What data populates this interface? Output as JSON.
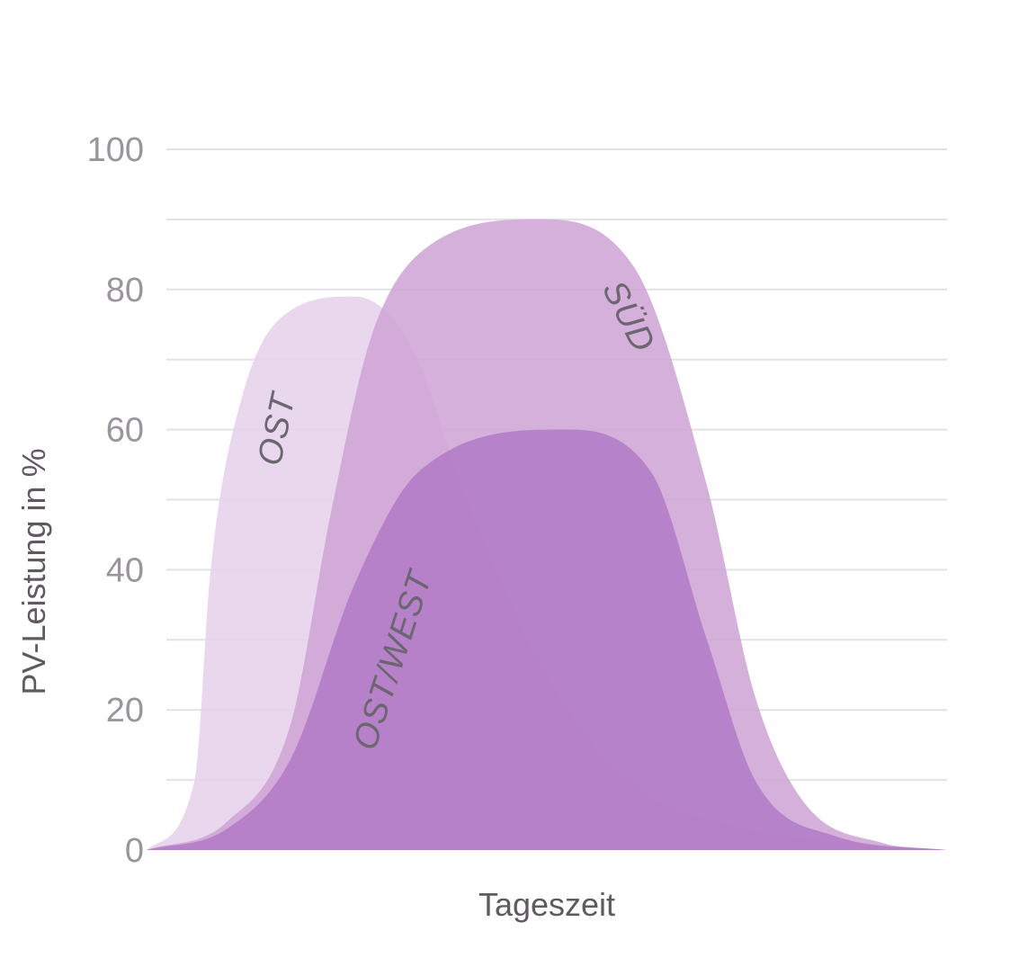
{
  "chart_data": {
    "type": "area",
    "title": "",
    "xlabel": "Tageszeit",
    "ylabel": "PV-Leistung in %",
    "ylim": [
      0,
      100
    ],
    "y_ticks": [
      {
        "value": 0,
        "label": "0"
      },
      {
        "value": 20,
        "label": "20"
      },
      {
        "value": 40,
        "label": "40"
      },
      {
        "value": 60,
        "label": "60"
      },
      {
        "value": 80,
        "label": "80"
      },
      {
        "value": 100,
        "label": "100"
      }
    ],
    "gridlines": [
      0,
      10,
      20,
      30,
      40,
      50,
      60,
      70,
      80,
      90,
      100
    ],
    "grid": true,
    "legend": "none (series labeled inline)",
    "x_range": [
      0,
      1
    ],
    "series": [
      {
        "name": "OST",
        "color": "#e6d2ea",
        "points": [
          {
            "x": 0.0,
            "y": 0
          },
          {
            "x": 0.06,
            "y": 10
          },
          {
            "x": 0.08,
            "y": 40
          },
          {
            "x": 0.12,
            "y": 65
          },
          {
            "x": 0.18,
            "y": 77
          },
          {
            "x": 0.26,
            "y": 79
          },
          {
            "x": 0.33,
            "y": 72
          },
          {
            "x": 0.4,
            "y": 50
          },
          {
            "x": 0.5,
            "y": 25
          },
          {
            "x": 0.6,
            "y": 10
          },
          {
            "x": 0.75,
            "y": 3
          },
          {
            "x": 0.9,
            "y": 1
          },
          {
            "x": 1.0,
            "y": 0
          }
        ]
      },
      {
        "name": "SÜD",
        "color": "#cfa5d6",
        "points": [
          {
            "x": 0.0,
            "y": 0
          },
          {
            "x": 0.1,
            "y": 4
          },
          {
            "x": 0.18,
            "y": 18
          },
          {
            "x": 0.23,
            "y": 48
          },
          {
            "x": 0.28,
            "y": 73
          },
          {
            "x": 0.35,
            "y": 86
          },
          {
            "x": 0.49,
            "y": 90
          },
          {
            "x": 0.61,
            "y": 83
          },
          {
            "x": 0.7,
            "y": 52
          },
          {
            "x": 0.76,
            "y": 22
          },
          {
            "x": 0.82,
            "y": 7
          },
          {
            "x": 0.92,
            "y": 1
          },
          {
            "x": 1.0,
            "y": 0
          }
        ]
      },
      {
        "name": "OST/WEST",
        "color": "#b27bc6",
        "points": [
          {
            "x": 0.0,
            "y": 0
          },
          {
            "x": 0.1,
            "y": 3
          },
          {
            "x": 0.18,
            "y": 13
          },
          {
            "x": 0.26,
            "y": 38
          },
          {
            "x": 0.34,
            "y": 54
          },
          {
            "x": 0.52,
            "y": 60
          },
          {
            "x": 0.63,
            "y": 54
          },
          {
            "x": 0.7,
            "y": 30
          },
          {
            "x": 0.76,
            "y": 10
          },
          {
            "x": 0.86,
            "y": 2
          },
          {
            "x": 1.0,
            "y": 0
          }
        ]
      }
    ],
    "annotations": [
      {
        "text": "OST",
        "series": "OST",
        "x": 0.165,
        "y": 60,
        "angle": -78
      },
      {
        "text": "SÜD",
        "series": "SÜD",
        "x": 0.6,
        "y": 76,
        "angle": 63
      },
      {
        "text": "OST/WEST",
        "series": "OST/WEST",
        "x": 0.31,
        "y": 27,
        "angle": -72
      }
    ]
  }
}
